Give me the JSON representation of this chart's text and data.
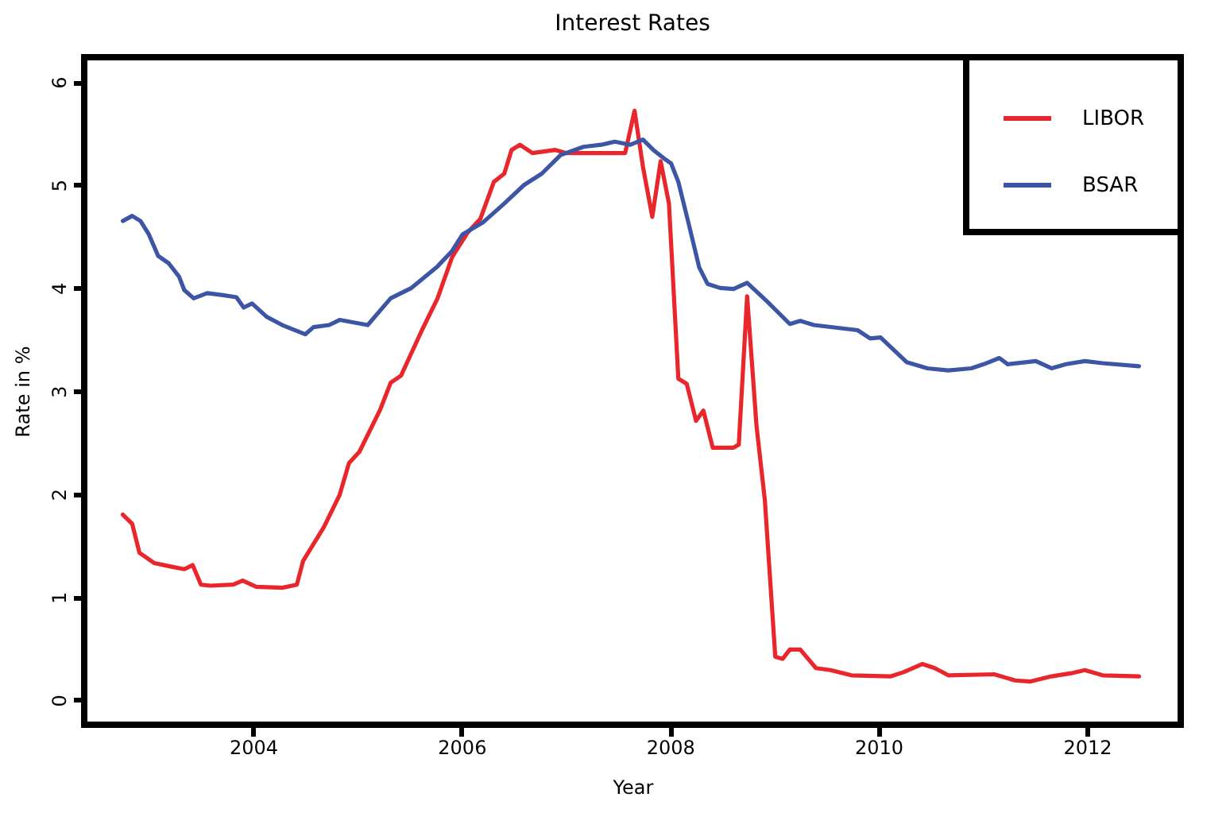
{
  "chart_data": {
    "type": "line",
    "title": "Interest Rates",
    "xlabel": "Year",
    "ylabel": "Rate in %",
    "xlim": [
      2002.38,
      2012.9
    ],
    "ylim": [
      -0.24,
      6.24
    ],
    "xticks": [
      2004,
      2006,
      2008,
      2010,
      2012
    ],
    "yticks": [
      0,
      1,
      2,
      3,
      4,
      5,
      6
    ],
    "grid": false,
    "legend": "top right",
    "series": [
      {
        "name": "LIBOR",
        "color": "#e8262b",
        "x": [
          2002.75,
          2002.84,
          2002.91,
          2003.05,
          2003.19,
          2003.34,
          2003.42,
          2003.5,
          2003.59,
          2003.81,
          2003.9,
          2004.03,
          2004.28,
          2004.42,
          2004.48,
          2004.68,
          2004.83,
          2004.92,
          2005.02,
          2005.22,
          2005.32,
          2005.42,
          2005.62,
          2005.77,
          2005.91,
          2006.06,
          2006.18,
          2006.31,
          2006.41,
          2006.48,
          2006.56,
          2006.68,
          2006.9,
          2007.0,
          2007.57,
          2007.66,
          2007.74,
          2007.83,
          2007.91,
          2007.99,
          2008.08,
          2008.16,
          2008.25,
          2008.32,
          2008.41,
          2008.61,
          2008.66,
          2008.74,
          2008.83,
          2008.91,
          2009.01,
          2009.08,
          2009.15,
          2009.25,
          2009.4,
          2009.54,
          2009.74,
          2010.12,
          2010.24,
          2010.42,
          2010.54,
          2010.67,
          2011.11,
          2011.31,
          2011.46,
          2011.66,
          2011.85,
          2011.98,
          2012.15,
          2012.5
        ],
        "values": [
          1.8,
          1.71,
          1.43,
          1.33,
          1.3,
          1.27,
          1.31,
          1.12,
          1.11,
          1.12,
          1.16,
          1.1,
          1.09,
          1.12,
          1.35,
          1.68,
          1.99,
          2.3,
          2.41,
          2.82,
          3.08,
          3.15,
          3.59,
          3.9,
          4.3,
          4.54,
          4.67,
          5.03,
          5.11,
          5.34,
          5.39,
          5.31,
          5.34,
          5.31,
          5.31,
          5.72,
          5.18,
          4.69,
          5.23,
          4.82,
          3.12,
          3.07,
          2.71,
          2.81,
          2.45,
          2.45,
          2.48,
          3.92,
          2.66,
          1.94,
          0.42,
          0.4,
          0.49,
          0.49,
          0.31,
          0.29,
          0.24,
          0.23,
          0.27,
          0.35,
          0.31,
          0.24,
          0.25,
          0.19,
          0.18,
          0.23,
          0.26,
          0.29,
          0.24,
          0.23
        ]
      },
      {
        "name": "BSAR",
        "color": "#3d55a5",
        "x": [
          2002.75,
          2002.84,
          2002.92,
          2003.0,
          2003.09,
          2003.19,
          2003.29,
          2003.34,
          2003.43,
          2003.56,
          2003.71,
          2003.84,
          2003.91,
          2003.99,
          2004.13,
          2004.28,
          2004.5,
          2004.58,
          2004.73,
          2004.83,
          2005.1,
          2005.32,
          2005.52,
          2005.77,
          2005.91,
          2006.01,
          2006.21,
          2006.41,
          2006.6,
          2006.77,
          2006.95,
          2007.17,
          2007.34,
          2007.47,
          2007.62,
          2007.74,
          2007.84,
          2007.94,
          2008.01,
          2008.08,
          2008.18,
          2008.28,
          2008.36,
          2008.48,
          2008.61,
          2008.74,
          2008.93,
          2009.15,
          2009.25,
          2009.38,
          2009.8,
          2009.92,
          2010.02,
          2010.27,
          2010.47,
          2010.67,
          2010.89,
          2011.01,
          2011.16,
          2011.24,
          2011.51,
          2011.66,
          2011.8,
          2011.98,
          2012.15,
          2012.5
        ],
        "values": [
          4.65,
          4.7,
          4.65,
          4.52,
          4.31,
          4.24,
          4.11,
          3.98,
          3.9,
          3.95,
          3.93,
          3.91,
          3.81,
          3.85,
          3.72,
          3.64,
          3.55,
          3.62,
          3.64,
          3.69,
          3.64,
          3.9,
          4.0,
          4.21,
          4.36,
          4.52,
          4.64,
          4.82,
          5.0,
          5.11,
          5.29,
          5.37,
          5.39,
          5.42,
          5.39,
          5.44,
          5.34,
          5.26,
          5.21,
          5.03,
          4.62,
          4.2,
          4.04,
          4.0,
          3.99,
          4.05,
          3.87,
          3.65,
          3.68,
          3.64,
          3.59,
          3.51,
          3.52,
          3.28,
          3.22,
          3.2,
          3.22,
          3.26,
          3.32,
          3.26,
          3.29,
          3.22,
          3.26,
          3.29,
          3.27,
          3.24
        ]
      }
    ]
  }
}
